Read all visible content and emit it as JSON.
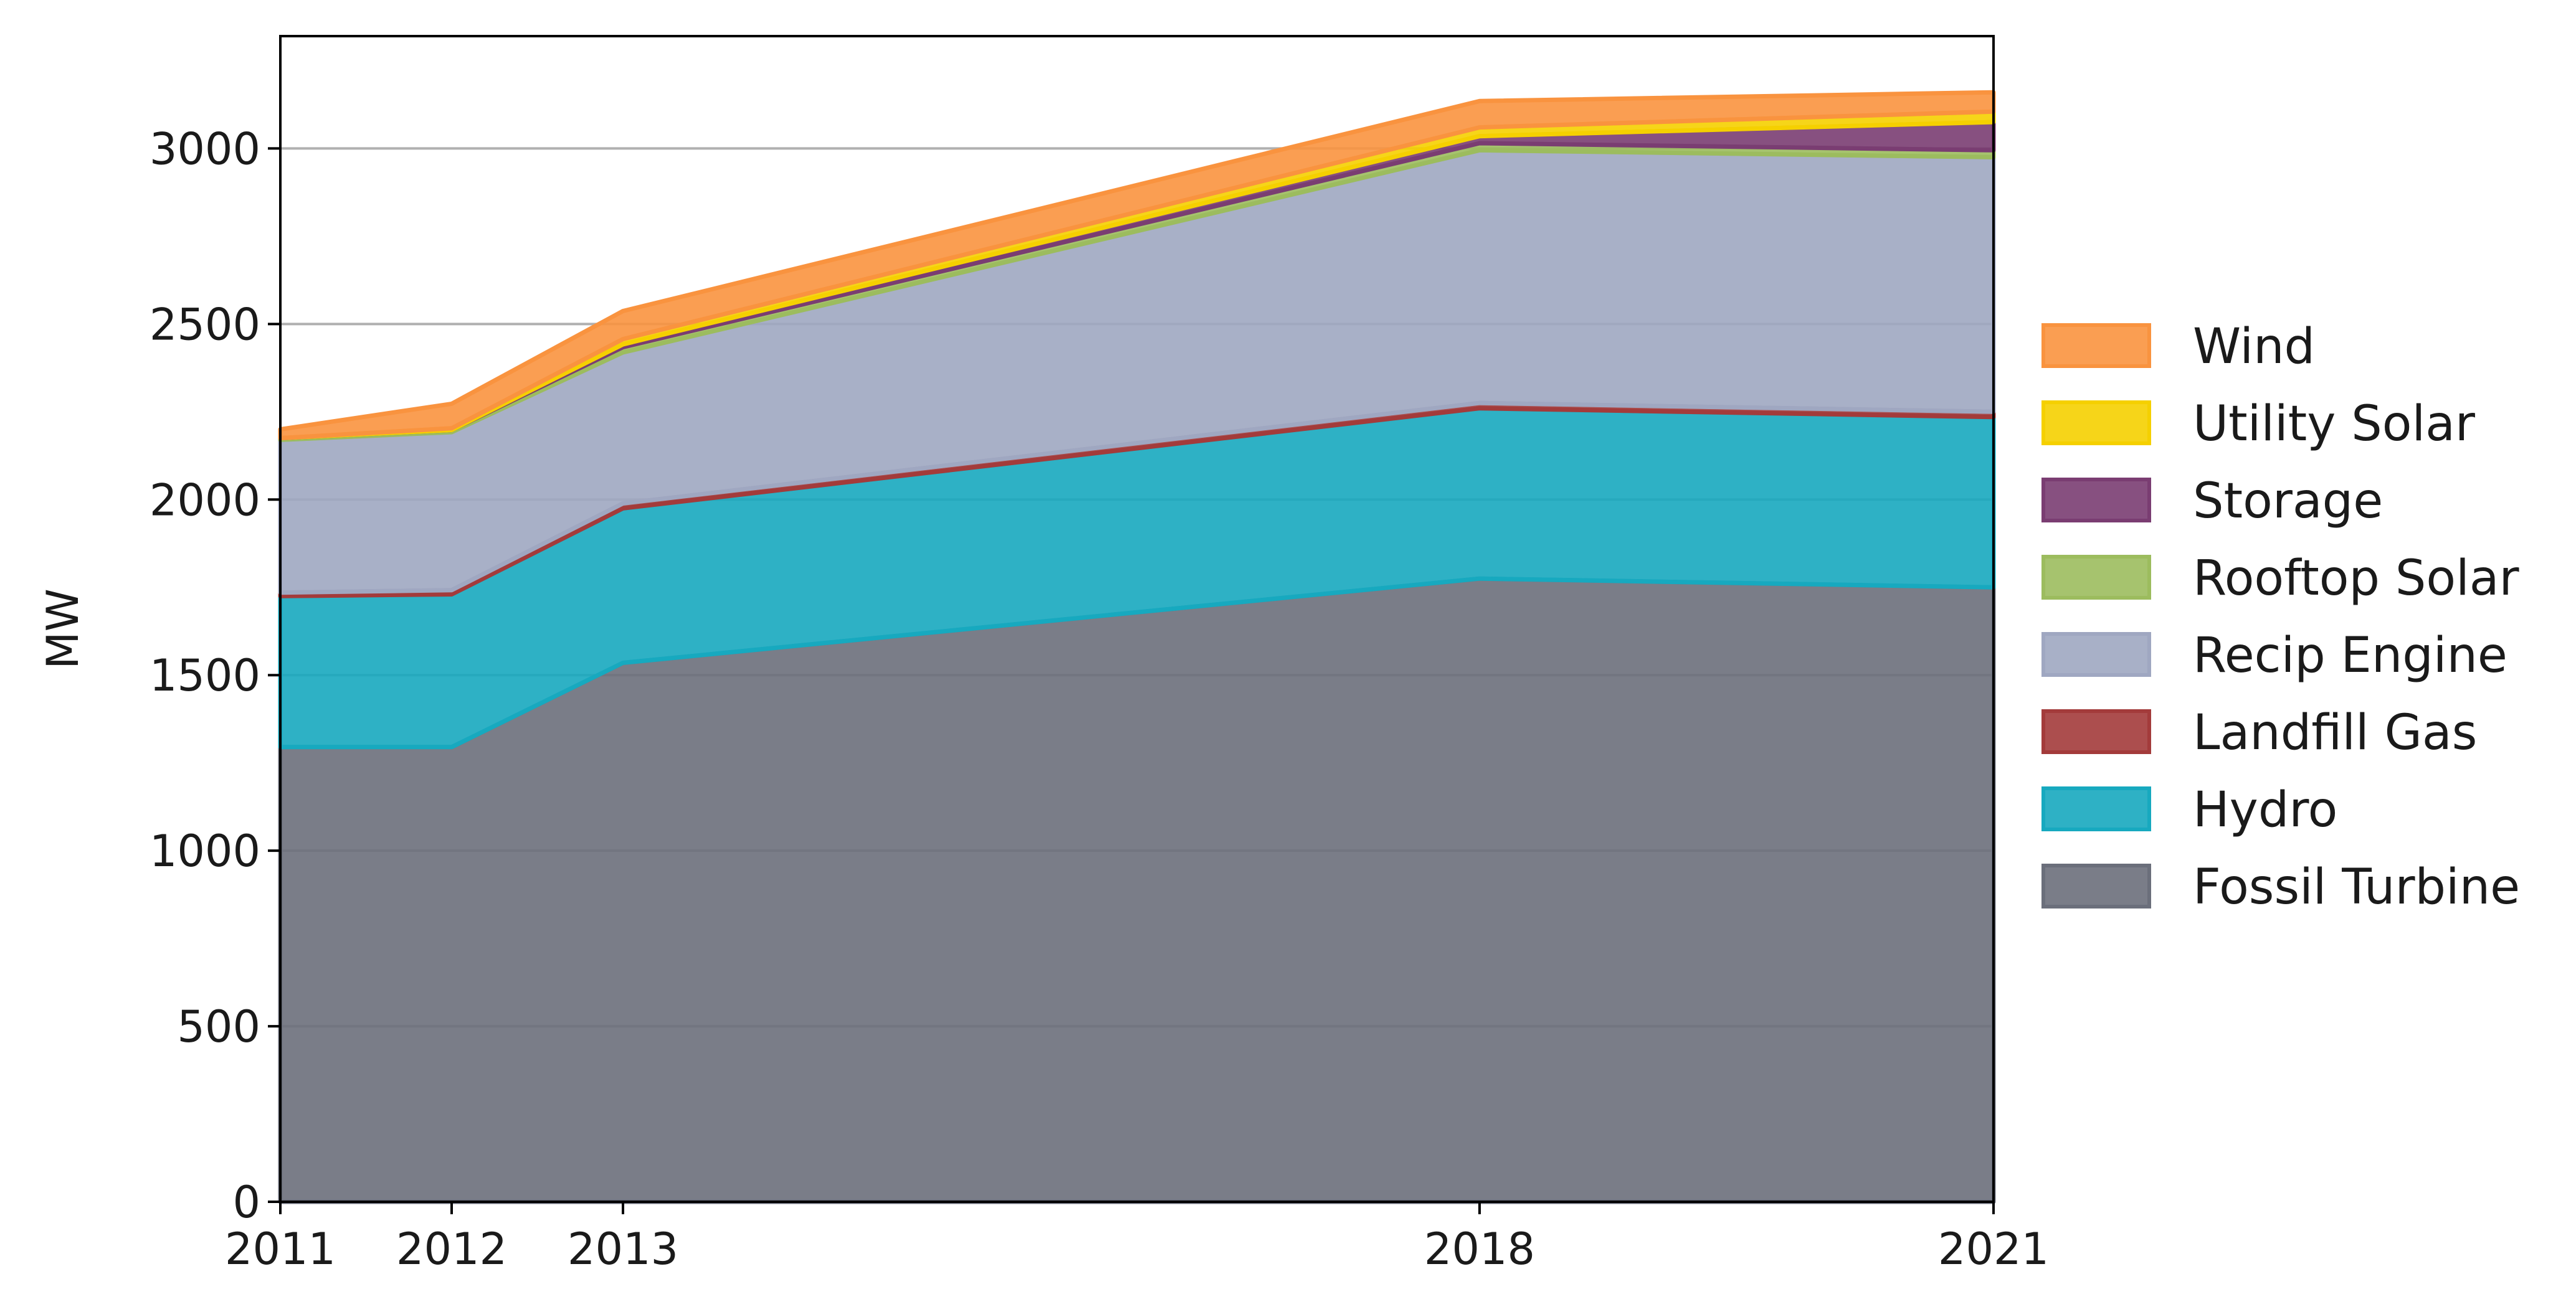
{
  "chart_data": {
    "type": "area",
    "stacked": true,
    "title": "",
    "xlabel": "",
    "ylabel": "MW",
    "x": [
      2011,
      2012,
      2013,
      2018,
      2021
    ],
    "xticks": [
      "2011",
      "2012",
      "2013",
      "2018",
      "2021"
    ],
    "yticks": [
      "0",
      "500",
      "1000",
      "1500",
      "2000",
      "2500",
      "3000"
    ],
    "xlim": [
      2011,
      2021
    ],
    "ylim": [
      0,
      3320
    ],
    "grid": "horizontal",
    "legend_position": "right",
    "series": [
      {
        "name": "Fossil Turbine",
        "color": "#6b6f7b",
        "values": [
          1295,
          1295,
          1535,
          1775,
          1750
        ]
      },
      {
        "name": "Hydro",
        "color": "#17a9bf",
        "values": [
          430,
          435,
          440,
          485,
          485
        ]
      },
      {
        "name": "Landfill Gas",
        "color": "#a33b3b",
        "values": [
          10,
          12,
          14,
          15,
          15
        ]
      },
      {
        "name": "Recip Engine",
        "color": "#9fa7c1",
        "values": [
          435,
          450,
          430,
          720,
          725
        ]
      },
      {
        "name": "Rooftop Solar",
        "color": "#9cbc5e",
        "values": [
          5,
          6,
          15,
          20,
          20
        ]
      },
      {
        "name": "Storage",
        "color": "#7a3d72",
        "values": [
          0,
          0,
          8,
          20,
          80
        ]
      },
      {
        "name": "Utility Solar",
        "color": "#f5d000",
        "values": [
          0,
          5,
          15,
          25,
          30
        ]
      },
      {
        "name": "Wind",
        "color": "#f9933f",
        "values": [
          25,
          70,
          80,
          75,
          55
        ]
      }
    ],
    "legend_order": [
      "Wind",
      "Utility Solar",
      "Storage",
      "Rooftop Solar",
      "Recip Engine",
      "Landfill Gas",
      "Hydro",
      "Fossil Turbine"
    ]
  }
}
